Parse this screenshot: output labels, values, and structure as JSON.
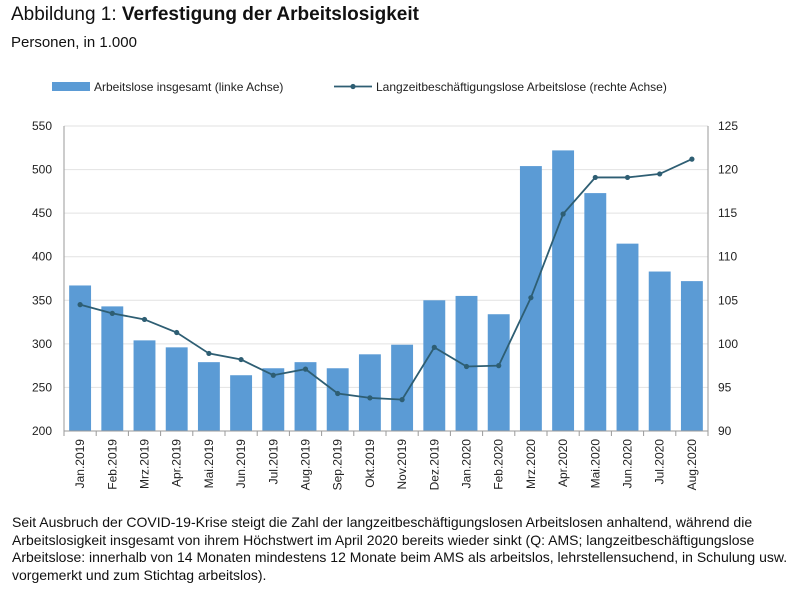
{
  "header": {
    "title_prefix": "Abbildung 1: ",
    "title_bold": "Verfestigung der Arbeitslosigkeit",
    "subtitle": "Personen, in 1.000"
  },
  "legend": {
    "bar_label": "Arbeitslose insgesamt (linke Achse)",
    "line_label": "Langzeitbeschäftigungslose Arbeitslose (rechte Achse)"
  },
  "colors": {
    "bar": "#5b9bd5",
    "line": "#2e5e73",
    "grid": "#e2e2e2",
    "axis": "#9a9a9a"
  },
  "chart_data": {
    "type": "bar",
    "categories": [
      "Jan.2019",
      "Feb.2019",
      "Mrz.2019",
      "Apr.2019",
      "Mai.2019",
      "Jun.2019",
      "Jul.2019",
      "Aug.2019",
      "Sep.2019",
      "Okt.2019",
      "Nov.2019",
      "Dez.2019",
      "Jan.2020",
      "Feb.2020",
      "Mrz.2020",
      "Apr.2020",
      "Mai.2020",
      "Jun.2020",
      "Jul.2020",
      "Aug.2020"
    ],
    "series": [
      {
        "name": "Arbeitslose insgesamt (linke Achse)",
        "type": "bar",
        "axis": "left",
        "values": [
          367,
          343,
          304,
          296,
          279,
          264,
          272,
          279,
          272,
          288,
          299,
          350,
          355,
          334,
          504,
          522,
          473,
          415,
          383,
          372
        ]
      },
      {
        "name": "Langzeitbeschäftigungslose Arbeitslose (rechte Achse)",
        "type": "line",
        "axis": "right",
        "values": [
          104.5,
          103.5,
          102.8,
          101.3,
          98.9,
          98.2,
          96.4,
          97.1,
          94.3,
          93.8,
          93.6,
          99.6,
          97.4,
          97.5,
          105.3,
          114.9,
          119.1,
          119.1,
          119.5,
          121.2
        ]
      }
    ],
    "left_axis": {
      "min": 200,
      "max": 550,
      "ticks": [
        "200",
        "250",
        "300",
        "350",
        "400",
        "450",
        "500",
        "550"
      ]
    },
    "right_axis": {
      "min": 90,
      "max": 125,
      "ticks": [
        "90",
        "95",
        "100",
        "105",
        "110",
        "115",
        "120",
        "125"
      ]
    },
    "grid": true,
    "legend_position": "top"
  },
  "footnote": "Seit Ausbruch der COVID-19-Krise steigt die Zahl der langzeitbeschäftigungslosen Arbeitslosen anhaltend, während die Arbeitslosigkeit insgesamt von ihrem Höchstwert im April 2020 bereits wieder sinkt (Q: AMS; langzeitbeschäftigungslose Arbeitslose: innerhalb von 14 Monaten mindestens 12 Monate beim AMS als arbeitslos, lehrstellensuchend, in Schulung usw. vorgemerkt und zum Stichtag arbeitslos)."
}
